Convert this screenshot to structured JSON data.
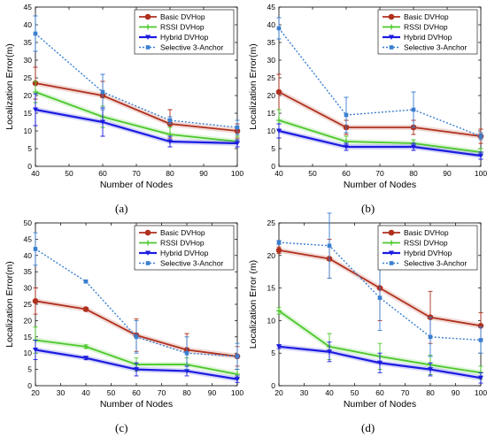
{
  "captions": [
    "(a)",
    "(b)",
    "(c)",
    "(d)"
  ],
  "colors": {
    "Basic DVHop": "#b0301e",
    "RSSI DVHop": "#4cc82b",
    "Hybrid DVHop": "#1c1ce0",
    "Selective 3-Anchor": "#3a7fd0"
  },
  "chart_data": [
    {
      "panel": "(a)",
      "type": "line",
      "xlabel": "Number of Nodes",
      "ylabel": "Localization Error(m)",
      "xlim": [
        40,
        100
      ],
      "ylim": [
        0,
        45
      ],
      "xticks": [
        40,
        50,
        60,
        70,
        80,
        90,
        100
      ],
      "yticks": [
        0,
        5,
        10,
        15,
        20,
        25,
        30,
        35,
        40,
        45
      ],
      "legend": "top-right",
      "grid": false,
      "x": [
        40,
        60,
        80,
        100
      ],
      "series": [
        {
          "name": "Basic DVHop",
          "values": [
            23.5,
            20,
            12,
            10
          ],
          "err": [
            4.5,
            4,
            4,
            2
          ]
        },
        {
          "name": "RSSI DVHop",
          "values": [
            21,
            14,
            9,
            7
          ],
          "err": [
            3,
            3,
            2,
            1.5
          ]
        },
        {
          "name": "Hybrid DVHop",
          "values": [
            16,
            12.5,
            7,
            6.5
          ],
          "err": [
            4.5,
            4,
            1.5,
            1
          ]
        },
        {
          "name": "Selective 3-Anchor",
          "values": [
            37.5,
            21,
            13,
            11
          ],
          "err": [
            5,
            5,
            1,
            2
          ]
        }
      ]
    },
    {
      "panel": "(b)",
      "type": "line",
      "xlabel": "Number of Nodes",
      "ylabel": "Localization Error(m)",
      "xlim": [
        40,
        100
      ],
      "ylim": [
        0,
        45
      ],
      "xticks": [
        40,
        50,
        60,
        70,
        80,
        90,
        100
      ],
      "yticks": [
        0,
        5,
        10,
        15,
        20,
        25,
        30,
        35,
        40,
        45
      ],
      "legend": "top-right",
      "grid": false,
      "x": [
        40,
        60,
        80,
        100
      ],
      "series": [
        {
          "name": "Basic DVHop",
          "values": [
            21,
            11,
            11,
            8.5
          ],
          "err": [
            5,
            2,
            2,
            2
          ]
        },
        {
          "name": "RSSI DVHop",
          "values": [
            13,
            7,
            6.5,
            4
          ],
          "err": [
            3,
            1.5,
            1,
            1
          ]
        },
        {
          "name": "Hybrid DVHop",
          "values": [
            10,
            5.5,
            5.5,
            3
          ],
          "err": [
            2,
            1,
            1,
            1
          ]
        },
        {
          "name": "Selective 3-Anchor",
          "values": [
            39,
            14.5,
            16,
            8.5
          ],
          "err": [
            3,
            5,
            5,
            1
          ]
        }
      ]
    },
    {
      "panel": "(c)",
      "type": "line",
      "xlabel": "Number of Nodes",
      "ylabel": "Localization Error(m)",
      "xlim": [
        20,
        100
      ],
      "ylim": [
        0,
        50
      ],
      "xticks": [
        20,
        30,
        40,
        50,
        60,
        70,
        80,
        90,
        100
      ],
      "yticks": [
        0,
        5,
        10,
        15,
        20,
        25,
        30,
        35,
        40,
        45,
        50
      ],
      "legend": "top-right",
      "grid": false,
      "x": [
        20,
        40,
        60,
        80,
        100
      ],
      "series": [
        {
          "name": "Basic DVHop",
          "values": [
            26,
            23.5,
            15.5,
            11,
            9
          ],
          "err": [
            4,
            0.5,
            5,
            5,
            3
          ]
        },
        {
          "name": "RSSI DVHop",
          "values": [
            14,
            12,
            6.5,
            6.5,
            3.5
          ],
          "err": [
            4,
            0.5,
            2,
            2,
            1.5
          ]
        },
        {
          "name": "Hybrid DVHop",
          "values": [
            11,
            8.5,
            5,
            4.5,
            2
          ],
          "err": [
            3,
            0.5,
            2,
            1.5,
            1
          ]
        },
        {
          "name": "Selective 3-Anchor",
          "values": [
            42,
            32,
            15,
            10,
            9
          ],
          "err": [
            5,
            0.5,
            5,
            5,
            4
          ]
        }
      ]
    },
    {
      "panel": "(d)",
      "type": "line",
      "xlabel": "Number of Nodes",
      "ylabel": "Localization Error (m)",
      "xlim": [
        20,
        100
      ],
      "ylim": [
        0,
        25
      ],
      "xticks": [
        20,
        30,
        40,
        50,
        60,
        70,
        80,
        90,
        100
      ],
      "yticks": [
        0,
        5,
        10,
        15,
        20,
        25
      ],
      "legend": "top-right",
      "grid": false,
      "x": [
        20,
        40,
        60,
        80,
        100
      ],
      "series": [
        {
          "name": "Basic DVHop",
          "values": [
            20.8,
            19.5,
            15,
            10.5,
            9.2
          ],
          "err": [
            0.5,
            3,
            5,
            4,
            2
          ]
        },
        {
          "name": "RSSI DVHop",
          "values": [
            11.5,
            6,
            4.5,
            3.2,
            2
          ],
          "err": [
            0.5,
            2,
            2,
            1.5,
            1
          ]
        },
        {
          "name": "Hybrid DVHop",
          "values": [
            6,
            5.2,
            3.5,
            2.5,
            1.2
          ],
          "err": [
            0.3,
            1.5,
            1.5,
            1,
            0.8
          ]
        },
        {
          "name": "Selective 3-Anchor",
          "values": [
            22,
            21.5,
            13.5,
            7.5,
            7
          ],
          "err": [
            0.3,
            5,
            5,
            3,
            2
          ]
        }
      ]
    }
  ]
}
